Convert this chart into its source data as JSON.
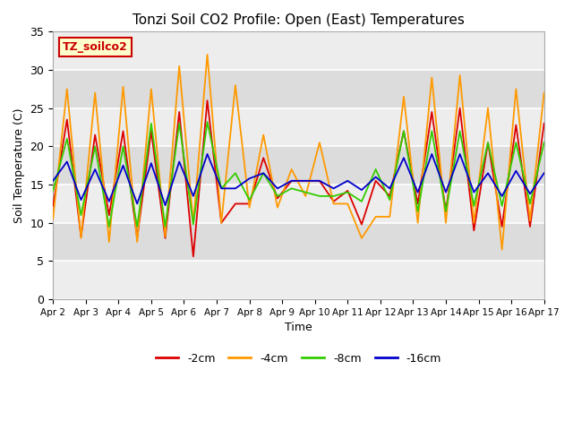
{
  "title": "Tonzi Soil CO2 Profile: Open (East) Temperatures",
  "xlabel": "Time",
  "ylabel": "Soil Temperature (C)",
  "ylim": [
    0,
    35
  ],
  "plot_bg": "#dcdcdc",
  "white_bands": [
    5,
    10,
    15,
    20,
    25,
    30
  ],
  "grid_color": "#ffffff",
  "label_box_text": "TZ_soilco2",
  "label_box_color": "#ffffcc",
  "label_box_edge": "#cc0000",
  "label_box_text_color": "#cc0000",
  "series_cm2_label": "-2cm",
  "series_cm2_color": "#dd0000",
  "series_cm4_label": "-4cm",
  "series_cm4_color": "#ff9900",
  "series_cm8_label": "-8cm",
  "series_cm8_color": "#33cc00",
  "series_cm16_label": "-16cm",
  "series_cm16_color": "#0000cc",
  "x_tick_labels": [
    "Apr 2",
    "Apr 3",
    "Apr 4",
    "Apr 5",
    "Apr 6",
    "Apr 7",
    "Apr 8",
    "Apr 9",
    "Apr 10",
    "Apr 11",
    "Apr 12",
    "Apr 13",
    "Apr 14",
    "Apr 15",
    "Apr 16",
    "Apr 17"
  ],
  "cm2_data": [
    12.2,
    23.5,
    8.2,
    21.5,
    11.0,
    22.0,
    8.0,
    22.0,
    8.0,
    24.5,
    5.6,
    26.0,
    10.0,
    12.5,
    12.5,
    18.5,
    13.2,
    15.5,
    15.5,
    15.5,
    12.8,
    14.2,
    9.8,
    15.5,
    13.5,
    22.0,
    12.5,
    24.5,
    11.5,
    25.0,
    9.0,
    20.5,
    9.5,
    22.8,
    9.5,
    23.0
  ],
  "cm4_data": [
    10.5,
    27.5,
    8.0,
    27.0,
    7.5,
    27.8,
    7.5,
    27.5,
    8.2,
    30.5,
    10.0,
    32.0,
    10.0,
    28.0,
    12.0,
    21.5,
    12.0,
    17.0,
    13.5,
    20.5,
    12.5,
    12.5,
    8.0,
    10.8,
    10.8,
    26.5,
    10.0,
    29.0,
    10.0,
    29.3,
    10.0,
    25.0,
    6.5,
    27.5,
    10.3,
    27.0
  ],
  "cm8_data": [
    14.2,
    21.0,
    11.0,
    20.0,
    9.5,
    20.0,
    9.5,
    23.0,
    9.5,
    23.0,
    9.8,
    23.2,
    14.5,
    16.5,
    13.0,
    16.5,
    13.5,
    14.5,
    14.0,
    13.5,
    13.5,
    14.0,
    12.8,
    17.0,
    13.0,
    22.0,
    11.5,
    22.0,
    11.5,
    22.0,
    12.2,
    20.5,
    12.2,
    20.5,
    12.5,
    20.5
  ],
  "cm16_data": [
    15.5,
    18.0,
    13.0,
    17.0,
    12.8,
    17.5,
    12.5,
    17.8,
    12.3,
    18.0,
    13.5,
    19.0,
    14.5,
    14.5,
    15.8,
    16.5,
    14.5,
    15.5,
    15.5,
    15.5,
    14.5,
    15.5,
    14.3,
    16.0,
    14.5,
    18.5,
    14.0,
    19.0,
    14.0,
    19.0,
    14.0,
    16.5,
    13.5,
    16.8,
    13.8,
    16.5
  ]
}
